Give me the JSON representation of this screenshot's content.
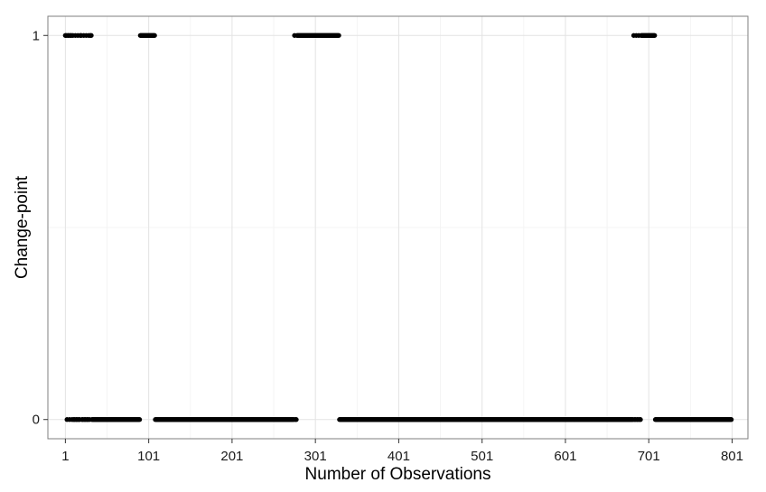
{
  "chart_data": {
    "type": "scatter",
    "title": "",
    "xlabel": "Number of Observations",
    "ylabel": "Change-point",
    "xlim": [
      -20,
      820
    ],
    "ylim": [
      -0.05,
      1.05
    ],
    "x_ticks": [
      1,
      101,
      201,
      301,
      401,
      501,
      601,
      701,
      801
    ],
    "x_tick_labels": [
      "1",
      "101",
      "201",
      "301",
      "401",
      "501",
      "601",
      "701",
      "801"
    ],
    "y_ticks": [
      0,
      1
    ],
    "y_tick_labels": [
      "0",
      "1"
    ],
    "grid": true,
    "legend": "none",
    "point_color": "#000000",
    "series": [
      {
        "segments_at_1": [
          [
            1,
            2
          ],
          [
            4,
            5
          ],
          [
            7,
            8
          ],
          [
            10,
            10
          ],
          [
            13,
            13
          ],
          [
            16,
            16
          ],
          [
            19,
            20
          ],
          [
            23,
            23
          ],
          [
            26,
            26
          ],
          [
            29,
            29
          ],
          [
            31,
            32
          ],
          [
            91,
            108
          ],
          [
            276,
            276
          ],
          [
            279,
            329
          ],
          [
            683,
            683
          ],
          [
            686,
            686
          ],
          [
            689,
            689
          ],
          [
            692,
            708
          ]
        ],
        "segments_at_0": [
          [
            3,
            3
          ],
          [
            6,
            6
          ],
          [
            9,
            9
          ],
          [
            11,
            12
          ],
          [
            14,
            15
          ],
          [
            17,
            18
          ],
          [
            21,
            22
          ],
          [
            24,
            25
          ],
          [
            27,
            28
          ],
          [
            30,
            30
          ],
          [
            33,
            90
          ],
          [
            109,
            275
          ],
          [
            277,
            278
          ],
          [
            330,
            682
          ],
          [
            684,
            685
          ],
          [
            687,
            688
          ],
          [
            690,
            691
          ],
          [
            709,
            800
          ]
        ]
      }
    ]
  }
}
